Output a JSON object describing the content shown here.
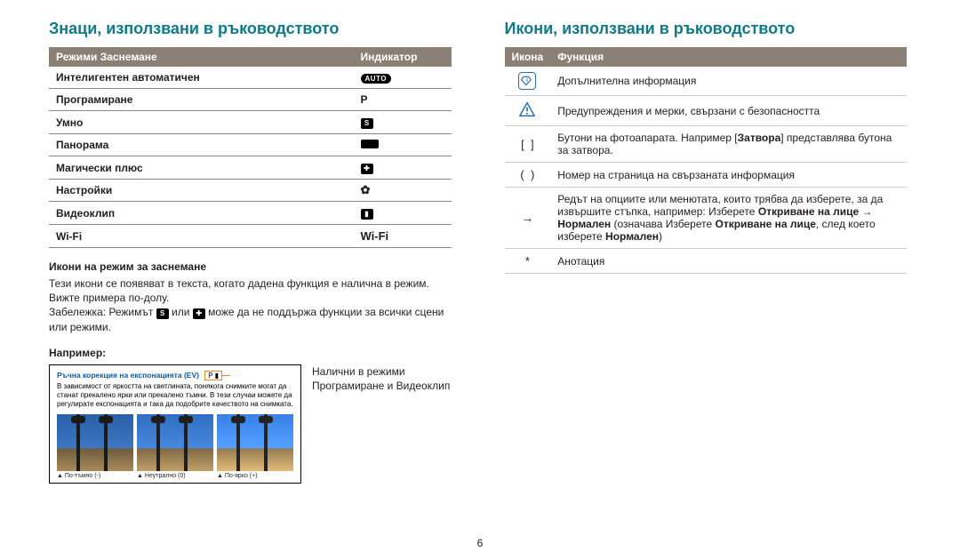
{
  "page_number": "6",
  "left": {
    "heading": "Знаци, използвани в ръководството",
    "modes_table": {
      "head": [
        "Режими Заснемане",
        "Индикатор"
      ],
      "rows": [
        {
          "label": "Интелигентен автоматичен",
          "ind_kind": "auto",
          "ind_text": "AUTO"
        },
        {
          "label": "Програмиране",
          "ind_kind": "text",
          "ind_text": "P"
        },
        {
          "label": "Умно",
          "ind_kind": "sq",
          "ind_text": "S"
        },
        {
          "label": "Панорама",
          "ind_kind": "pano",
          "ind_text": ""
        },
        {
          "label": "Магически плюс",
          "ind_kind": "sq",
          "ind_text": "✚"
        },
        {
          "label": "Настройки",
          "ind_kind": "gear",
          "ind_text": "✿"
        },
        {
          "label": "Видеоклип",
          "ind_kind": "sq",
          "ind_text": "▮"
        },
        {
          "label": "Wi-Fi",
          "ind_kind": "wifi",
          "ind_text": "Wi-Fi"
        }
      ]
    },
    "sub1": "Икони на режим за заснемане",
    "para1": "Тези икони се появяват в текста, когато дадена функция е налична в режим. Вижте примера по-долу.",
    "para2_a": "Забележка: Режимът ",
    "para2_b": " или ",
    "para2_c": " може да не поддържа функции за всички сцени или режими.",
    "example_heading": "Например:",
    "example": {
      "title": "Ръчна корекция на експонацията (EV)",
      "tag": "P ▮",
      "desc": "В зависимост от яркостта на светлината, понякога снимките могат да станат прекалено ярки или прекалено тъмни. В тези случаи можете да регулирате експонацията и така да подобрите качеството на снимката.",
      "caps": [
        "По-тъмно (-)",
        "Неутрално (0)",
        "По-ярко (+)"
      ]
    },
    "example_note": "Налични в режими Програмиране и Видеоклип"
  },
  "right": {
    "heading": "Икони, използвани в ръководството",
    "funcs_table": {
      "head": [
        "Икона",
        "Функция"
      ],
      "rows": [
        {
          "icon": "info",
          "text": "Допълнителна информация"
        },
        {
          "icon": "warn",
          "text": "Предупреждения и мерки, свързани с безопасността"
        },
        {
          "icon": "brackets",
          "text_html": "Бутони на фотоапарата. Например [<b>Затвора</b>] представлява бутона за затвора."
        },
        {
          "icon": "parens",
          "text": "Номер на страница на свързаната информация"
        },
        {
          "icon": "arrow",
          "text_html": "Редът на опциите или менютата, които трябва да изберете, за да извършите стъпка, например: Изберете <b>Откриване на лице</b> → <b>Нормален</b> (означава Изберете <b>Откриване на лице</b>, след което изберете <b>Нормален</b>)"
        },
        {
          "icon": "star",
          "text": "Анотация"
        }
      ]
    }
  }
}
